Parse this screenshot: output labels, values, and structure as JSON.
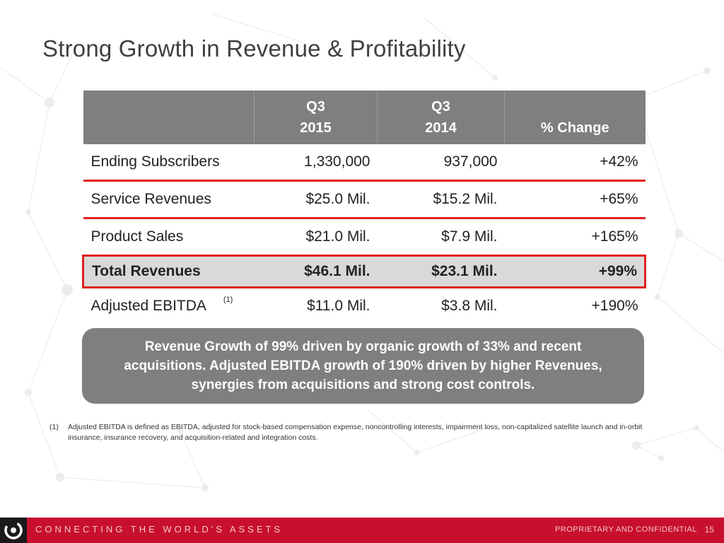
{
  "title": "Strong Growth in Revenue & Profitability",
  "table": {
    "headers": [
      {
        "line1": "",
        "line2": ""
      },
      {
        "line1": "Q3",
        "line2": "2015"
      },
      {
        "line1": "Q3",
        "line2": "2014"
      },
      {
        "line1": "",
        "line2": "% Change"
      }
    ],
    "rows": [
      {
        "label": "Ending Subscribers",
        "q3_2015": "1,330,000",
        "q3_2014": "937,000",
        "change": "+42%",
        "footnote_ref": ""
      },
      {
        "label": "Service Revenues",
        "q3_2015": "$25.0  Mil.",
        "q3_2014": "$15.2  Mil.",
        "change": "+65%",
        "footnote_ref": ""
      },
      {
        "label": "Product Sales",
        "q3_2015": "$21.0 Mil.",
        "q3_2014": "$7.9 Mil.",
        "change": "+165%",
        "footnote_ref": ""
      },
      {
        "label": "Total Revenues",
        "q3_2015": "$46.1  Mil.",
        "q3_2014": "$23.1 Mil.",
        "change": "+99%",
        "footnote_ref": ""
      },
      {
        "label": "Adjusted EBITDA",
        "q3_2015": "$11.0  Mil.",
        "q3_2014": "$3.8 Mil.",
        "change": "+190%",
        "footnote_ref": "(1)"
      }
    ]
  },
  "callout": "Revenue Growth of 99% driven by organic growth of 33% and recent acquisitions. Adjusted EBITDA growth of 190% driven by higher Revenues, synergies from acquisitions and strong cost controls.",
  "footnote": {
    "marker": "(1)",
    "text": "Adjusted EBITDA is defined as EBITDA, adjusted for stock-based compensation expense, noncontrolling interests, impairment loss, non-capitalized satellite launch and in-orbit insurance, insurance recovery, and acquisition-related and integration costs."
  },
  "footer": {
    "tagline": "CONNECTING THE WORLD'S ASSETS",
    "confidential": "PROPRIETARY AND CONFIDENTIAL",
    "page_number": "15",
    "logo_icon": "company-logo-icon"
  },
  "colors": {
    "accent_red": "#c8102e",
    "highlight_red": "#e02020",
    "header_gray": "#7f7f7f",
    "highlight_gray": "#d9d9d9"
  }
}
